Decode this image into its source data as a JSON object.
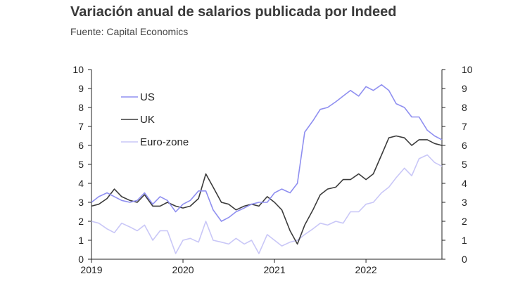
{
  "header": {
    "title": "Variación anual de salarios publicada por Indeed",
    "subtitle": "Fuente: Capital Economics"
  },
  "colors": {
    "us": "#8f8ff0",
    "uk": "#3c3c3c",
    "euro": "#c9c7f7",
    "axis": "#222222"
  },
  "chart_data": {
    "type": "line",
    "title": "Variación anual de salarios publicada por Indeed",
    "subtitle": "Fuente: Capital Economics",
    "xlabel": "",
    "ylabel": "",
    "x_range": [
      2019.0,
      2022.83
    ],
    "ylim": [
      0,
      10
    ],
    "y_ticks": [
      "0",
      "1",
      "2",
      "3",
      "4",
      "5",
      "6",
      "7",
      "8",
      "9",
      "10"
    ],
    "y_ticks_right": [
      "0",
      "1",
      "2",
      "3",
      "4",
      "5",
      "6",
      "7",
      "8",
      "9",
      "10"
    ],
    "x_ticks": [
      {
        "value": 2019,
        "label": "2019"
      },
      {
        "value": 2020,
        "label": "2020"
      },
      {
        "value": 2021,
        "label": "2021"
      },
      {
        "value": 2022,
        "label": "2022"
      }
    ],
    "grid": false,
    "legend_position": "top-left",
    "series": [
      {
        "name": "US",
        "key": "us",
        "points": [
          [
            2019.0,
            3.0
          ],
          [
            2019.08,
            3.3
          ],
          [
            2019.17,
            3.5
          ],
          [
            2019.25,
            3.3
          ],
          [
            2019.33,
            3.1
          ],
          [
            2019.42,
            3.0
          ],
          [
            2019.5,
            3.1
          ],
          [
            2019.58,
            3.5
          ],
          [
            2019.67,
            2.9
          ],
          [
            2019.75,
            3.3
          ],
          [
            2019.83,
            3.1
          ],
          [
            2019.92,
            2.5
          ],
          [
            2020.0,
            2.9
          ],
          [
            2020.08,
            3.1
          ],
          [
            2020.17,
            3.6
          ],
          [
            2020.25,
            3.6
          ],
          [
            2020.33,
            2.6
          ],
          [
            2020.42,
            2.0
          ],
          [
            2020.5,
            2.2
          ],
          [
            2020.58,
            2.5
          ],
          [
            2020.67,
            2.7
          ],
          [
            2020.75,
            2.9
          ],
          [
            2020.83,
            3.0
          ],
          [
            2020.92,
            3.0
          ],
          [
            2021.0,
            3.5
          ],
          [
            2021.08,
            3.7
          ],
          [
            2021.17,
            3.5
          ],
          [
            2021.25,
            4.0
          ],
          [
            2021.33,
            6.7
          ],
          [
            2021.42,
            7.3
          ],
          [
            2021.5,
            7.9
          ],
          [
            2021.58,
            8.0
          ],
          [
            2021.67,
            8.3
          ],
          [
            2021.75,
            8.6
          ],
          [
            2021.83,
            8.9
          ],
          [
            2021.92,
            8.6
          ],
          [
            2022.0,
            9.1
          ],
          [
            2022.08,
            8.9
          ],
          [
            2022.17,
            9.2
          ],
          [
            2022.25,
            8.9
          ],
          [
            2022.33,
            8.2
          ],
          [
            2022.42,
            8.0
          ],
          [
            2022.5,
            7.5
          ],
          [
            2022.58,
            7.5
          ],
          [
            2022.67,
            6.8
          ],
          [
            2022.75,
            6.5
          ],
          [
            2022.83,
            6.3
          ]
        ]
      },
      {
        "name": "UK",
        "key": "uk",
        "points": [
          [
            2019.0,
            2.8
          ],
          [
            2019.08,
            2.9
          ],
          [
            2019.17,
            3.2
          ],
          [
            2019.25,
            3.7
          ],
          [
            2019.33,
            3.3
          ],
          [
            2019.42,
            3.1
          ],
          [
            2019.5,
            3.0
          ],
          [
            2019.58,
            3.4
          ],
          [
            2019.67,
            2.8
          ],
          [
            2019.75,
            2.8
          ],
          [
            2019.83,
            3.0
          ],
          [
            2019.92,
            2.8
          ],
          [
            2020.0,
            2.7
          ],
          [
            2020.08,
            2.8
          ],
          [
            2020.17,
            3.2
          ],
          [
            2020.25,
            4.5
          ],
          [
            2020.33,
            3.8
          ],
          [
            2020.42,
            3.0
          ],
          [
            2020.5,
            2.9
          ],
          [
            2020.58,
            2.6
          ],
          [
            2020.67,
            2.8
          ],
          [
            2020.75,
            2.9
          ],
          [
            2020.83,
            2.8
          ],
          [
            2020.92,
            3.3
          ],
          [
            2021.0,
            3.0
          ],
          [
            2021.08,
            2.6
          ],
          [
            2021.17,
            1.5
          ],
          [
            2021.25,
            0.8
          ],
          [
            2021.33,
            1.8
          ],
          [
            2021.42,
            2.6
          ],
          [
            2021.5,
            3.4
          ],
          [
            2021.58,
            3.7
          ],
          [
            2021.67,
            3.8
          ],
          [
            2021.75,
            4.2
          ],
          [
            2021.83,
            4.2
          ],
          [
            2021.92,
            4.5
          ],
          [
            2022.0,
            4.2
          ],
          [
            2022.08,
            4.5
          ],
          [
            2022.17,
            5.5
          ],
          [
            2022.25,
            6.4
          ],
          [
            2022.33,
            6.5
          ],
          [
            2022.42,
            6.4
          ],
          [
            2022.5,
            6.0
          ],
          [
            2022.58,
            6.3
          ],
          [
            2022.67,
            6.3
          ],
          [
            2022.75,
            6.1
          ],
          [
            2022.83,
            6.0
          ]
        ]
      },
      {
        "name": "Euro-zone",
        "key": "euro",
        "points": [
          [
            2019.0,
            2.0
          ],
          [
            2019.08,
            1.9
          ],
          [
            2019.17,
            1.6
          ],
          [
            2019.25,
            1.4
          ],
          [
            2019.33,
            1.9
          ],
          [
            2019.42,
            1.7
          ],
          [
            2019.5,
            1.5
          ],
          [
            2019.58,
            1.8
          ],
          [
            2019.67,
            1.0
          ],
          [
            2019.75,
            1.5
          ],
          [
            2019.83,
            1.5
          ],
          [
            2019.92,
            0.3
          ],
          [
            2020.0,
            1.0
          ],
          [
            2020.08,
            1.1
          ],
          [
            2020.17,
            0.9
          ],
          [
            2020.25,
            2.0
          ],
          [
            2020.33,
            1.0
          ],
          [
            2020.42,
            0.9
          ],
          [
            2020.5,
            0.8
          ],
          [
            2020.58,
            1.1
          ],
          [
            2020.67,
            0.8
          ],
          [
            2020.75,
            1.0
          ],
          [
            2020.83,
            0.3
          ],
          [
            2020.92,
            1.3
          ],
          [
            2021.0,
            1.0
          ],
          [
            2021.08,
            0.7
          ],
          [
            2021.17,
            0.9
          ],
          [
            2021.25,
            1.0
          ],
          [
            2021.33,
            1.3
          ],
          [
            2021.42,
            1.6
          ],
          [
            2021.5,
            1.9
          ],
          [
            2021.58,
            1.8
          ],
          [
            2021.67,
            2.0
          ],
          [
            2021.75,
            1.9
          ],
          [
            2021.83,
            2.5
          ],
          [
            2021.92,
            2.5
          ],
          [
            2022.0,
            2.9
          ],
          [
            2022.08,
            3.0
          ],
          [
            2022.17,
            3.5
          ],
          [
            2022.25,
            3.8
          ],
          [
            2022.33,
            4.3
          ],
          [
            2022.42,
            4.8
          ],
          [
            2022.5,
            4.4
          ],
          [
            2022.58,
            5.3
          ],
          [
            2022.67,
            5.5
          ],
          [
            2022.75,
            5.1
          ],
          [
            2022.83,
            4.9
          ]
        ]
      }
    ]
  }
}
